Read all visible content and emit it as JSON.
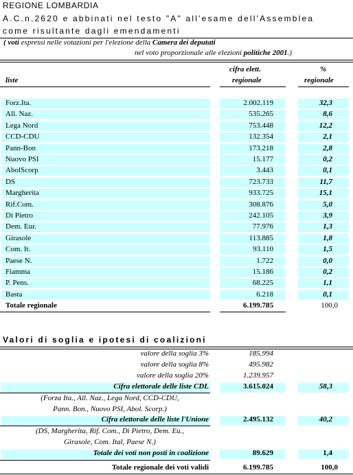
{
  "header": {
    "region": "REGIONE LOMBARDIA",
    "subtitle_line1": "A.C.n.2620 e abbinati nel testo \"A\" all'esame dell'Assemblea",
    "subtitle_line2": "come risultante dagli emendamenti",
    "note_line1_pre": "( voti",
    "note_line1_mid": " espressi nelle votazioni per l'elezione della ",
    "note_line1_bold": "Camera dei deputati",
    "note_line2_pre": "nel voto proporzionale alle elezioni ",
    "note_line2_bold": "politiche 2001",
    "note_line2_post": ".)"
  },
  "table": {
    "col_liste": "liste",
    "col_cifra_1": "cifra elett.",
    "col_cifra_2": "regionale",
    "col_pct_1": "%",
    "col_pct_2": "regionale",
    "rows": [
      {
        "name": "Forz.Ita.",
        "votes": "2.002.119",
        "pct": "32,3"
      },
      {
        "name": "All. Naz.",
        "votes": "535.265",
        "pct": "8,6"
      },
      {
        "name": "Lega Nord",
        "votes": "753.448",
        "pct": "12,2"
      },
      {
        "name": "CCD-CDU",
        "votes": "132.354",
        "pct": "2,1"
      },
      {
        "name": "Pann-Bon",
        "votes": "173.218",
        "pct": "2,8"
      },
      {
        "name": "Nuovo PSI",
        "votes": "15.177",
        "pct": "0,2"
      },
      {
        "name": "AbolScorp",
        "votes": "3.443",
        "pct": "0,1"
      },
      {
        "name": "DS",
        "votes": "723.733",
        "pct": "11,7"
      },
      {
        "name": "Margherita",
        "votes": "933.725",
        "pct": "15,1"
      },
      {
        "name": "Rif.Com.",
        "votes": "308.876",
        "pct": "5,0"
      },
      {
        "name": "Di Pietro",
        "votes": "242.105",
        "pct": "3,9"
      },
      {
        "name": "Dem. Eur.",
        "votes": "77.976",
        "pct": "1,3"
      },
      {
        "name": "Girasole",
        "votes": "113.885",
        "pct": "1,8"
      },
      {
        "name": "Com. It.",
        "votes": "93.110",
        "pct": "1,5"
      },
      {
        "name": "Paese N.",
        "votes": "1.722",
        "pct": "0,0"
      },
      {
        "name": "Fiamma",
        "votes": "15.186",
        "pct": "0,2"
      },
      {
        "name": "P. Pens.",
        "votes": "68.225",
        "pct": "1,1"
      },
      {
        "name": "Basta",
        "votes": "6.218",
        "pct": "0,1"
      }
    ],
    "total_label": "Totale regionale",
    "total_votes": "6.199.785",
    "total_pct": "100,0"
  },
  "coalitions": {
    "title": "Valori di soglia e ipotesi di coalizioni",
    "thresholds": [
      {
        "label": "valore della soglia 3%",
        "value": "185.994"
      },
      {
        "label": "valore della soglia 8%",
        "value": "495.982"
      },
      {
        "label": "valore della soglia 20%",
        "value": "1.239.957"
      }
    ],
    "cdl_label": "Cifra elettorale delle liste CDL",
    "cdl_votes": "3.615.024",
    "cdl_pct": "58,3",
    "cdl_members_1": "(Forza Ita., All. Naz., Lega Nord, CCD-CDU,",
    "cdl_members_2": "Pann. Bon., Nuovo PSI, Abol. Scorp.)",
    "unione_label": "Cifra elettorale delle liste l'Unione",
    "unione_votes": "2.495.132",
    "unione_pct": "40,2",
    "unione_members_1": "(DS, Margherita, Rif. Com., Di Pietro, Dem. Eu.,",
    "unione_members_2": "Girasole, Com. Ital, Paese N.)",
    "nonposti_label": "Totale dei voti non posti in coalizione",
    "nonposti_votes": "89.629",
    "nonposti_pct": "1,4",
    "valid_label": "Totale regionale dei voti validi",
    "valid_votes": "6.199.785",
    "valid_pct": "100,0"
  }
}
